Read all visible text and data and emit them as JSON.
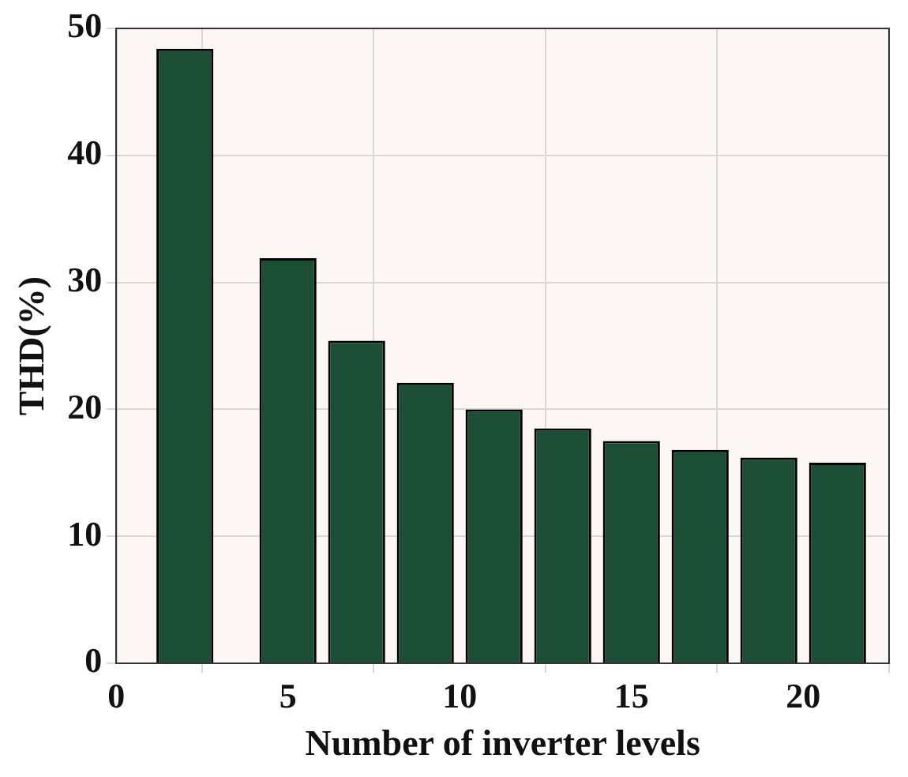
{
  "chart_data": {
    "type": "bar",
    "xlabel": "Number of inverter levels",
    "ylabel": "THD(%)",
    "x": [
      2,
      5,
      7,
      9,
      11,
      13,
      15,
      17,
      19,
      21
    ],
    "values": [
      48.4,
      31.9,
      25.4,
      22.1,
      20.0,
      18.5,
      17.5,
      16.8,
      16.2,
      15.8
    ],
    "color": "#1c4e35",
    "xlim": [
      0,
      22.5
    ],
    "xticks": [
      0,
      5,
      10,
      15,
      20
    ],
    "ylim": [
      0,
      50
    ],
    "yticks": [
      0,
      10,
      20,
      30,
      40,
      50
    ],
    "grid": true
  }
}
